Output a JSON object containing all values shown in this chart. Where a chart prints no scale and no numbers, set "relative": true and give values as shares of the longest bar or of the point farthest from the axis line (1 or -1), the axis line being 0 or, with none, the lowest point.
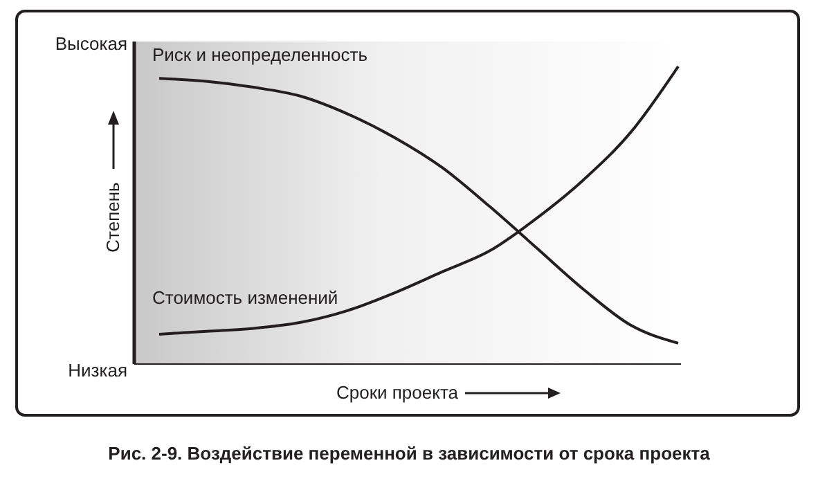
{
  "chart_data": {
    "type": "line",
    "relative": true,
    "xlabel": "Сроки проекта",
    "ylabel": "Степень",
    "categories": [
      null,
      null,
      null,
      null,
      null,
      null,
      null,
      null,
      null,
      null,
      null,
      null
    ],
    "series": [
      {
        "name": "Риск и неопределенность",
        "color": "#231f20",
        "values": [
          0.96,
          0.95,
          0.93,
          0.9,
          0.84,
          0.76,
          0.66,
          0.53,
          0.39,
          0.25,
          0.13,
          0.07
        ]
      },
      {
        "name": "Стоимость изменений",
        "color": "#231f20",
        "values": [
          0.1,
          0.11,
          0.12,
          0.14,
          0.18,
          0.24,
          0.31,
          0.38,
          0.49,
          0.62,
          0.78,
          1.0
        ]
      }
    ],
    "annotations": [
      "Высокая",
      "Низкая",
      "Рис. 2-9. Воздействие переменной в зависимости от срока проекта"
    ],
    "grid": false,
    "legend": false,
    "marker": "none",
    "line_style": "solid"
  }
}
